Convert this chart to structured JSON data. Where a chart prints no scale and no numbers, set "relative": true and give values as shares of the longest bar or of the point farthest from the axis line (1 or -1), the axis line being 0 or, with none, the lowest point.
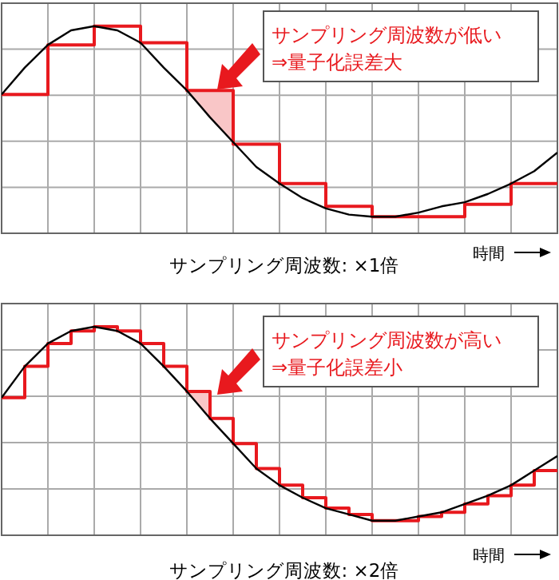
{
  "chart_data": [
    {
      "type": "line",
      "relative": true,
      "title": "サンプリング周波数: ×1倍",
      "xlabel": "時間",
      "grid": true,
      "categories": [
        null,
        null,
        null,
        null,
        null,
        null,
        null,
        null,
        null,
        null,
        null,
        null,
        null,
        null,
        null,
        null,
        null,
        null,
        null,
        null,
        null,
        null,
        null,
        null,
        null
      ],
      "series": [
        {
          "type": "line",
          "color": "#000000",
          "values": [
            0.67,
            0.8,
            0.91,
            0.98,
            1,
            0.98,
            0.92,
            0.8,
            0.69,
            0.56,
            0.44,
            0.32,
            0.24,
            0.17,
            0.12,
            0.09,
            0.08,
            0.08,
            0.1,
            0.13,
            0.15,
            0.19,
            0.24,
            0.3,
            0.39
          ],
          "lower": [
            null,
            null,
            null,
            null,
            null,
            null,
            null,
            null,
            0.69,
            0.56,
            0.44,
            null,
            null,
            null,
            null,
            null,
            null,
            null,
            null,
            null,
            null,
            null,
            null,
            null,
            null
          ],
          "upper": [
            null,
            null,
            null,
            null,
            null,
            null,
            null,
            null,
            0.69,
            0.69,
            0.69,
            null,
            null,
            null,
            null,
            null,
            null,
            null,
            null,
            null,
            null,
            null,
            null,
            null,
            null
          ]
        },
        {
          "type": "step",
          "color": "#e8191e",
          "values": [
            0.67,
            0.67,
            0.91,
            0.91,
            1,
            1,
            0.92,
            0.92,
            0.69,
            0.69,
            0.43,
            0.43,
            0.24,
            0.24,
            0.13,
            0.13,
            0.08,
            0.08,
            0.08,
            0.08,
            0.14,
            0.14,
            0.24,
            0.24,
            0.24
          ]
        }
      ],
      "annotations": [
        "サンプリング周波数が低い\n⇒量子化誤差大"
      ]
    },
    {
      "type": "line",
      "relative": true,
      "title": "サンプリング周波数: ×2倍",
      "xlabel": "時間",
      "grid": true,
      "categories": [
        null,
        null,
        null,
        null,
        null,
        null,
        null,
        null,
        null,
        null,
        null,
        null,
        null,
        null,
        null,
        null,
        null,
        null,
        null,
        null,
        null,
        null,
        null,
        null,
        null
      ],
      "series": [
        {
          "type": "line",
          "color": "#000000",
          "values": [
            0.66,
            0.81,
            0.92,
            0.98,
            1,
            0.98,
            0.92,
            0.81,
            0.69,
            0.56,
            0.44,
            0.32,
            0.24,
            0.18,
            0.13,
            0.1,
            0.07,
            0.07,
            0.09,
            0.11,
            0.15,
            0.19,
            0.24,
            0.31,
            0.38
          ],
          "lower": [
            null,
            null,
            null,
            null,
            null,
            null,
            null,
            null,
            0.69,
            0.56,
            null,
            null,
            null,
            null,
            null,
            null,
            null,
            null,
            null,
            null,
            null,
            null,
            null,
            null,
            null
          ],
          "upper": [
            null,
            null,
            null,
            null,
            null,
            null,
            null,
            null,
            0.69,
            0.69,
            null,
            null,
            null,
            null,
            null,
            null,
            null,
            null,
            null,
            null,
            null,
            null,
            null,
            null,
            null
          ]
        },
        {
          "type": "step",
          "color": "#e8191e",
          "values": [
            0.66,
            0.81,
            0.92,
            0.98,
            1,
            0.98,
            0.92,
            0.81,
            0.69,
            0.56,
            0.44,
            0.32,
            0.24,
            0.18,
            0.13,
            0.1,
            0.07,
            0.07,
            0.09,
            0.11,
            0.15,
            0.19,
            0.24,
            0.31,
            0.31
          ]
        }
      ],
      "annotations": [
        "サンプリング周波数が高い\n⇒量子化誤差小"
      ]
    }
  ]
}
